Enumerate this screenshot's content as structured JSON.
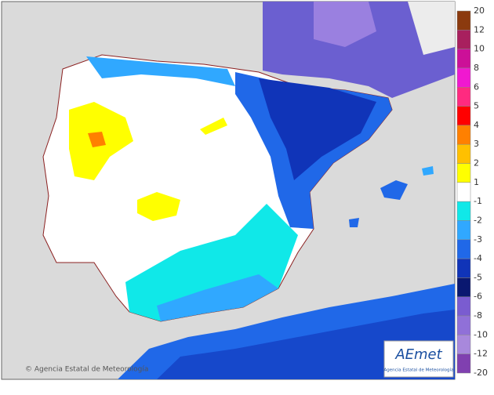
{
  "credit": "© Agencia Estatal de Meteorología",
  "logo": {
    "name": "AEmet",
    "agency": "Agencia Estatal de Meteorología"
  },
  "legend": {
    "labels": [
      "20",
      "12",
      "10",
      "8",
      "6",
      "5",
      "4",
      "3",
      "2",
      "1",
      "-1",
      "-2",
      "-3",
      "-4",
      "-5",
      "-6",
      "-8",
      "-10",
      "-12",
      "-20"
    ],
    "colors": [
      "#8b3a0e",
      "#a8205e",
      "#cc1098",
      "#f018d0",
      "#ff2a80",
      "#ff0000",
      "#ff8000",
      "#ffc000",
      "#ffff00",
      "#ffffff",
      "#10e8e8",
      "#30a8ff",
      "#2068e8",
      "#1034b8",
      "#0a1870",
      "#7a5cd0",
      "#9070d8",
      "#a888dc",
      "#8040b0"
    ]
  }
}
